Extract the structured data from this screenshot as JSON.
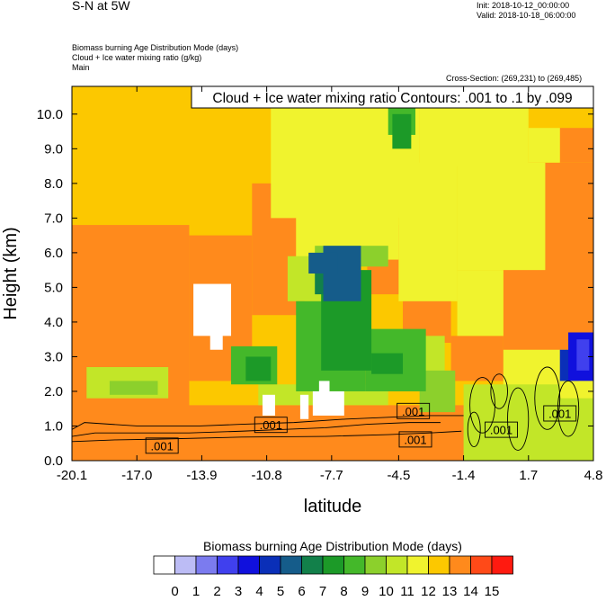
{
  "header": {
    "title": "S-N at 5W",
    "init": "Init: 2018-10-12_00:00:00",
    "valid": "Valid: 2018-10-18_06:00:00",
    "field1": "Biomass burning Age Distribution Mode   (days)",
    "field2": "Cloud + Ice water mixing ratio   (g/kg)",
    "field3": "Main",
    "cross_section": "Cross-Section: (269,231) to (269,485)"
  },
  "chart_data": {
    "type": "heatmap",
    "title": "Cloud + Ice water mixing ratio Contours: .001 to .1 by .099",
    "xlabel": "latitude",
    "ylabel": "Height (km)",
    "xlim": [
      -20.1,
      4.8
    ],
    "ylim": [
      0.0,
      10.8
    ],
    "x_ticks": [
      "-20.1",
      "-17.0",
      "-13.9",
      "-10.8",
      "-7.7",
      "-4.5",
      "-1.4",
      "1.7",
      "4.8"
    ],
    "y_ticks": [
      "0.0",
      "1.0",
      "2.0",
      "3.0",
      "4.0",
      "5.0",
      "6.0",
      "7.0",
      "8.0",
      "9.0",
      "10.0"
    ],
    "contour_labels": [
      {
        "text": ".001",
        "x": -15.8,
        "y": 0.42
      },
      {
        "text": ".001",
        "x": -10.6,
        "y": 1.02
      },
      {
        "text": ".001",
        "x": -3.8,
        "y": 1.42
      },
      {
        "text": ".001",
        "x": -3.7,
        "y": 0.6
      },
      {
        "text": ".001",
        "x": 0.4,
        "y": 0.88
      },
      {
        "text": ".001",
        "x": 3.2,
        "y": 1.35
      }
    ],
    "colorbar": {
      "title": "Biomass burning Age Distribution Mode  (days)",
      "labels": [
        "0",
        "1",
        "2",
        "3",
        "4",
        "5",
        "6",
        "7",
        "8",
        "9",
        "10",
        "11",
        "12",
        "13",
        "14",
        "15"
      ],
      "colors": [
        "#ffffff",
        "#bcbcf5",
        "#7b7bef",
        "#4040ee",
        "#1010dd",
        "#0a2fb8",
        "#155c8a",
        "#12804a",
        "#1c9a28",
        "#44b82a",
        "#8cd02c",
        "#c2e628",
        "#f0f32e",
        "#fcc800",
        "#ff8a1c",
        "#ff4a18",
        "#ff1a10"
      ]
    },
    "regions": [
      {
        "v": 13,
        "x": [
          -20.1,
          4.8
        ],
        "y": [
          0,
          10.8
        ]
      },
      {
        "v": 14,
        "x": [
          -20.1,
          -14.5
        ],
        "y": [
          0.5,
          6.8
        ]
      },
      {
        "v": 14,
        "x": [
          -14.5,
          -11.5
        ],
        "y": [
          2.3,
          6.5
        ]
      },
      {
        "v": 14,
        "x": [
          -11.5,
          -9.0
        ],
        "y": [
          4.2,
          8.0
        ]
      },
      {
        "v": 14,
        "x": [
          -9.0,
          -7.0
        ],
        "y": [
          6.8,
          8.0
        ]
      },
      {
        "v": 14,
        "x": [
          -6.0,
          -4.3
        ],
        "y": [
          4.8,
          6.8
        ]
      },
      {
        "v": 14,
        "x": [
          -4.3,
          -2.0
        ],
        "y": [
          3.4,
          5.2
        ]
      },
      {
        "v": 14,
        "x": [
          -2.0,
          0.5
        ],
        "y": [
          2.3,
          3.6
        ]
      },
      {
        "v": 14,
        "x": [
          0.5,
          4.8
        ],
        "y": [
          2.6,
          8.6
        ]
      },
      {
        "v": 14,
        "x": [
          3.2,
          4.8
        ],
        "y": [
          8.6,
          9.6
        ]
      },
      {
        "v": 14,
        "x": [
          -20.1,
          4.8
        ],
        "y": [
          0,
          1.6
        ]
      },
      {
        "v": 12,
        "x": [
          -10.6,
          -3.5
        ],
        "y": [
          7.0,
          10.8
        ]
      },
      {
        "v": 12,
        "x": [
          -3.5,
          1.7
        ],
        "y": [
          8.5,
          10.8
        ]
      },
      {
        "v": 12,
        "x": [
          -9.4,
          -4.5
        ],
        "y": [
          5.8,
          7.2
        ]
      },
      {
        "v": 12,
        "x": [
          -4.5,
          -1.7
        ],
        "y": [
          4.6,
          8.6
        ]
      },
      {
        "v": 12,
        "x": [
          -1.7,
          2.5
        ],
        "y": [
          5.5,
          8.6
        ]
      },
      {
        "v": 12,
        "x": [
          -1.7,
          0.5
        ],
        "y": [
          3.6,
          5.5
        ]
      },
      {
        "v": 12,
        "x": [
          0.5,
          3.5
        ],
        "y": [
          2.0,
          3.2
        ]
      },
      {
        "v": 12,
        "x": [
          1.7,
          3.2
        ],
        "y": [
          8.6,
          9.6
        ]
      },
      {
        "v": 11,
        "x": [
          -9.8,
          -7.6
        ],
        "y": [
          4.6,
          5.9
        ]
      },
      {
        "v": 11,
        "x": [
          -4.8,
          -2.3
        ],
        "y": [
          2.2,
          3.6
        ]
      },
      {
        "v": 11,
        "x": [
          -19.4,
          -15.5
        ],
        "y": [
          1.8,
          2.7
        ]
      },
      {
        "v": 11,
        "x": [
          -11.2,
          -5.0
        ],
        "y": [
          1.6,
          2.2
        ]
      },
      {
        "v": 10,
        "x": [
          -8.5,
          -5.0
        ],
        "y": [
          5.6,
          6.2
        ]
      },
      {
        "v": 10,
        "x": [
          -3.5,
          -1.8
        ],
        "y": [
          1.4,
          2.6
        ]
      },
      {
        "v": 10,
        "x": [
          -18.3,
          -16.0
        ],
        "y": [
          1.9,
          2.3
        ]
      },
      {
        "v": 9,
        "x": [
          -9.4,
          -6.1
        ],
        "y": [
          2.0,
          4.6
        ]
      },
      {
        "v": 9,
        "x": [
          -6.1,
          -3.2
        ],
        "y": [
          2.0,
          3.8
        ]
      },
      {
        "v": 9,
        "x": [
          -5.0,
          -3.7
        ],
        "y": [
          9.4,
          10.8
        ]
      },
      {
        "v": 9,
        "x": [
          -12.5,
          -10.3
        ],
        "y": [
          2.2,
          3.3
        ]
      },
      {
        "v": 8,
        "x": [
          -8.2,
          -5.8
        ],
        "y": [
          2.6,
          5.5
        ]
      },
      {
        "v": 8,
        "x": [
          -5.8,
          -4.3
        ],
        "y": [
          2.5,
          3.1
        ]
      },
      {
        "v": 8,
        "x": [
          -4.8,
          -3.9
        ],
        "y": [
          9.0,
          10.0
        ]
      },
      {
        "v": 8,
        "x": [
          -11.8,
          -10.6
        ],
        "y": [
          2.3,
          3.0
        ]
      },
      {
        "v": 7,
        "x": [
          -8.5,
          -6.6
        ],
        "y": [
          4.8,
          5.6
        ]
      },
      {
        "v": 6,
        "x": [
          -8.1,
          -6.3
        ],
        "y": [
          4.6,
          6.2
        ]
      },
      {
        "v": 6,
        "x": [
          -8.8,
          -7.4
        ],
        "y": [
          5.4,
          6.0
        ]
      },
      {
        "v": 5,
        "x": [
          3.2,
          4.1
        ],
        "y": [
          2.2,
          3.2
        ]
      },
      {
        "v": 4,
        "x": [
          3.6,
          4.8
        ],
        "y": [
          2.3,
          3.7
        ]
      },
      {
        "v": 3,
        "x": [
          4.0,
          4.6
        ],
        "y": [
          2.6,
          3.5
        ]
      },
      {
        "v": 11,
        "x": [
          -1.4,
          4.8
        ],
        "y": [
          0,
          2.2
        ]
      },
      {
        "v": 12,
        "x": [
          3.2,
          4.8
        ],
        "y": [
          1.8,
          2.3
        ]
      },
      {
        "v": 0,
        "x": [
          -14.3,
          -12.5
        ],
        "y": [
          3.6,
          5.1
        ]
      },
      {
        "v": 0,
        "x": [
          -13.5,
          -12.9
        ],
        "y": [
          3.2,
          3.7
        ]
      },
      {
        "v": 0,
        "x": [
          -11.0,
          -10.4
        ],
        "y": [
          1.3,
          1.9
        ]
      },
      {
        "v": 0,
        "x": [
          -9.2,
          -8.8
        ],
        "y": [
          1.2,
          1.9
        ]
      },
      {
        "v": 0,
        "x": [
          -8.6,
          -7.1
        ],
        "y": [
          1.3,
          2.0
        ]
      },
      {
        "v": 0,
        "x": [
          -8.3,
          -7.8
        ],
        "y": [
          1.9,
          2.3
        ]
      }
    ]
  }
}
